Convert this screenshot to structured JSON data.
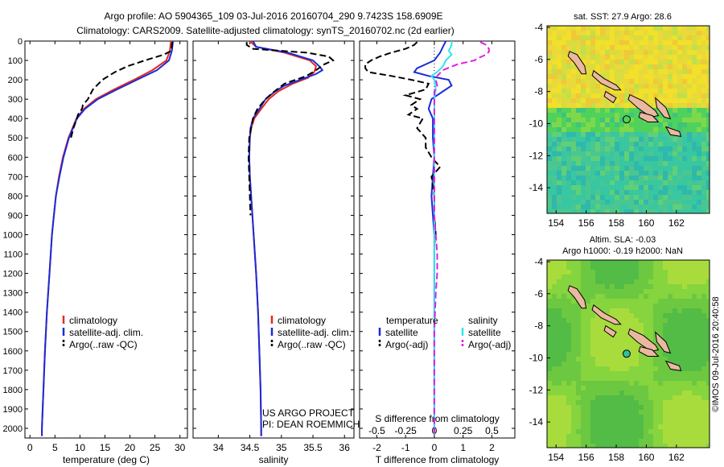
{
  "header": {
    "line1": "Argo profile: AO 5904365_109 03-Jul-2016 20160704_290 9.7423S 158.6909E",
    "line2": "Climatology: CARS2009. Satellite-adjusted climatology: synTS_20160702.nc (2d earlier)"
  },
  "credit": "©IMOS 09-Jul-2016 20:40:58",
  "project": {
    "line1": "US ARGO PROJECT",
    "line2": "PI: DEAN ROEMMICH"
  },
  "colors": {
    "clim": "#e8281e",
    "sat": "#1a2cd8",
    "argo": "#000000",
    "satT": "#2ee6ee",
    "argoS": "#e020e0"
  },
  "chart_data": [
    {
      "type": "line",
      "xlabel": "temperature (deg C)",
      "ylim": [
        2050,
        0
      ],
      "xlim": [
        -1,
        31.5
      ],
      "xticks": [
        0,
        5,
        10,
        15,
        20,
        25,
        30
      ],
      "yticks": [
        0,
        100,
        200,
        300,
        400,
        500,
        600,
        700,
        800,
        900,
        1000,
        1100,
        1200,
        1300,
        1400,
        1500,
        1600,
        1700,
        1800,
        1900,
        2000
      ],
      "legend": {
        "placement": "bottom-left",
        "entries": [
          "climatology",
          "satellite-adj. clim.",
          "Argo(..raw -QC)"
        ]
      },
      "series": [
        {
          "key": "clim",
          "depth": [
            0,
            50,
            100,
            150,
            200,
            250,
            300,
            350,
            400,
            500,
            600,
            700,
            800,
            900,
            1000,
            1200,
            1400,
            1600,
            1800,
            2000,
            2040
          ],
          "values": [
            28.2,
            28.0,
            27.3,
            24.5,
            20.8,
            16.8,
            13.2,
            10.8,
            9.3,
            7.7,
            6.6,
            5.8,
            5.2,
            4.8,
            4.4,
            3.9,
            3.4,
            3.0,
            2.7,
            2.4,
            2.4
          ]
        },
        {
          "key": "sat",
          "depth": [
            0,
            50,
            100,
            150,
            200,
            250,
            300,
            350,
            400,
            500,
            600,
            700,
            800,
            900,
            1000,
            1200,
            1400,
            1600,
            1800,
            2000,
            2040
          ],
          "values": [
            28.6,
            28.4,
            27.8,
            25.4,
            21.4,
            17.4,
            13.6,
            11.0,
            9.4,
            7.8,
            6.7,
            5.9,
            5.2,
            4.8,
            4.4,
            3.9,
            3.4,
            3.0,
            2.7,
            2.4,
            2.4
          ]
        },
        {
          "key": "argo",
          "depth": [
            5,
            20,
            50,
            70,
            100,
            130,
            160,
            200,
            250,
            300,
            330,
            350,
            380,
            400,
            450,
            500
          ],
          "values": [
            28.5,
            28.4,
            28.3,
            26.8,
            23.0,
            19.5,
            17.0,
            14.5,
            12.6,
            11.6,
            10.6,
            10.4,
            9.6,
            9.4,
            8.7,
            8.2
          ]
        }
      ]
    },
    {
      "type": "line",
      "xlabel": "salinity",
      "ylim": [
        2050,
        0
      ],
      "xlim": [
        33.6,
        36.15
      ],
      "xticks": [
        34,
        34.5,
        35,
        35.5,
        36
      ],
      "legend": {
        "placement": "bottom-right",
        "entries": [
          "climatology",
          "satellite-adj. clim.",
          "Argo(..raw -QC)"
        ]
      },
      "series": [
        {
          "key": "clim",
          "depth": [
            0,
            30,
            60,
            100,
            130,
            160,
            190,
            220,
            260,
            300,
            350,
            400,
            450,
            500,
            600,
            700,
            800,
            1000,
            1200,
            1400,
            1600,
            1800,
            2000,
            2040
          ],
          "values": [
            34.5,
            34.6,
            35.05,
            35.45,
            35.55,
            35.52,
            35.42,
            35.18,
            34.95,
            34.8,
            34.68,
            34.57,
            34.52,
            34.5,
            34.49,
            34.5,
            34.52,
            34.56,
            34.6,
            34.63,
            34.65,
            34.67,
            34.68,
            34.68
          ]
        },
        {
          "key": "sat",
          "depth": [
            0,
            30,
            60,
            100,
            130,
            150,
            170,
            200,
            230,
            260,
            300,
            350,
            400,
            450,
            500,
            600,
            700,
            800,
            1000,
            1200,
            1400,
            1600,
            1800,
            2000,
            2040
          ],
          "values": [
            34.55,
            34.6,
            35.1,
            35.5,
            35.6,
            35.65,
            35.55,
            35.3,
            35.05,
            34.9,
            34.75,
            34.65,
            34.55,
            34.51,
            34.5,
            34.49,
            34.5,
            34.52,
            34.56,
            34.6,
            34.63,
            34.65,
            34.67,
            34.68,
            34.68
          ]
        },
        {
          "key": "argo",
          "depth": [
            5,
            20,
            40,
            60,
            80,
            100,
            120,
            150,
            180,
            220,
            270,
            300,
            350,
            400,
            500,
            600,
            700,
            800,
            900
          ],
          "values": [
            34.45,
            34.45,
            34.55,
            35.4,
            35.75,
            35.82,
            35.68,
            35.55,
            35.4,
            35.05,
            34.85,
            34.75,
            34.62,
            34.55,
            34.49,
            34.48,
            34.49,
            34.5,
            34.51
          ]
        }
      ]
    },
    {
      "type": "line",
      "xlabel": "T difference from climatology",
      "xlabel2": "S difference from climatology",
      "ylim": [
        2050,
        0
      ],
      "xlim": [
        -2.6,
        2.8
      ],
      "xticks": [
        -2,
        -1,
        0,
        1,
        2
      ],
      "x2ticks": [
        -0.5,
        -0.25,
        0,
        0.25,
        0.5
      ],
      "x2labels": [
        "-0.5",
        "-0.25",
        "0",
        "0.25",
        "0.5"
      ],
      "legend": {
        "placement": "bottom",
        "temperature_title": "temperature",
        "salinity_title": "salinity",
        "entries": [
          "satellite",
          "Argo(-adj)",
          "satellite",
          "Argo(-adj)"
        ]
      },
      "series": [
        {
          "key": "sat",
          "depth": [
            0,
            30,
            60,
            80,
            100,
            120,
            140,
            160,
            180,
            200,
            230,
            260,
            300,
            350,
            400,
            500,
            600,
            700,
            800,
            900,
            1000,
            1200,
            1400,
            1600,
            1800,
            2000,
            2030
          ],
          "values": [
            0.4,
            0.3,
            0.2,
            0.1,
            0.0,
            -0.3,
            -0.6,
            -0.7,
            -0.2,
            0.5,
            0.6,
            0.3,
            -0.1,
            -0.2,
            -0.05,
            -0.05,
            0.0,
            -0.05,
            -0.1,
            -0.05,
            0.0,
            0.0,
            0.0,
            0.0,
            0.0,
            0.0,
            0.0
          ]
        },
        {
          "key": "argo",
          "depth": [
            5,
            20,
            40,
            60,
            80,
            100,
            120,
            140,
            160,
            180,
            200,
            220,
            250,
            280,
            300,
            330,
            350,
            380,
            400,
            450,
            500,
            550,
            600,
            650,
            700,
            800,
            900,
            1000,
            1050
          ],
          "values": [
            -0.6,
            -0.7,
            -1.0,
            -1.5,
            -1.9,
            -2.2,
            -2.4,
            -2.4,
            -2.3,
            -1.5,
            -0.8,
            -0.2,
            -0.3,
            -1.0,
            -0.5,
            -0.8,
            -0.6,
            -0.9,
            -0.4,
            -0.6,
            -0.3,
            -0.3,
            -0.1,
            0.2,
            -0.1,
            0.0,
            0.0,
            0.05,
            0.0
          ]
        },
        {
          "key": "satT",
          "depth": [
            0,
            20,
            50,
            70,
            100,
            130,
            160,
            180,
            200,
            250,
            300,
            400,
            500,
            700,
            900,
            1100,
            1300,
            1500,
            1700,
            1900,
            2030
          ],
          "values": [
            0.6,
            0.6,
            0.5,
            0.6,
            0.4,
            0.3,
            0.1,
            -0.1,
            0.0,
            0.05,
            0.0,
            0.0,
            0.0,
            0.0,
            0.0,
            0.0,
            0.0,
            0.0,
            0.0,
            0.0,
            0.0
          ]
        },
        {
          "key": "argoS",
          "depth": [
            5,
            20,
            40,
            55,
            70,
            90,
            100,
            120,
            150,
            180,
            200,
            230,
            260,
            300,
            400,
            500,
            600,
            700,
            800,
            900,
            1000,
            1100,
            1200,
            1300,
            1500,
            1700,
            1900,
            2030
          ],
          "values": [
            1.6,
            1.8,
            1.9,
            1.9,
            1.8,
            1.5,
            1.4,
            0.8,
            0.3,
            0.1,
            0.05,
            0.1,
            0.0,
            0.0,
            0.0,
            0.0,
            0.0,
            0.0,
            0.0,
            0.0,
            0.05,
            0.1,
            0.1,
            0.05,
            0.0,
            0.0,
            0.0,
            0.0
          ]
        }
      ]
    }
  ],
  "maps": [
    {
      "title": "sat. SST: 27.9 Argo: 28.6",
      "subtitle": ""
    },
    {
      "title": "Altim. SLA: -0.03",
      "subtitle": "Argo h1000: -0.19 h2000: NaN"
    }
  ],
  "map_axes": {
    "xticks": [
      154,
      156,
      158,
      160,
      162
    ],
    "yticks": [
      -4,
      -6,
      -8,
      -10,
      -12,
      -14
    ],
    "lon": [
      153.4,
      164.2
    ],
    "lat": [
      -3.9,
      -15.6
    ]
  }
}
